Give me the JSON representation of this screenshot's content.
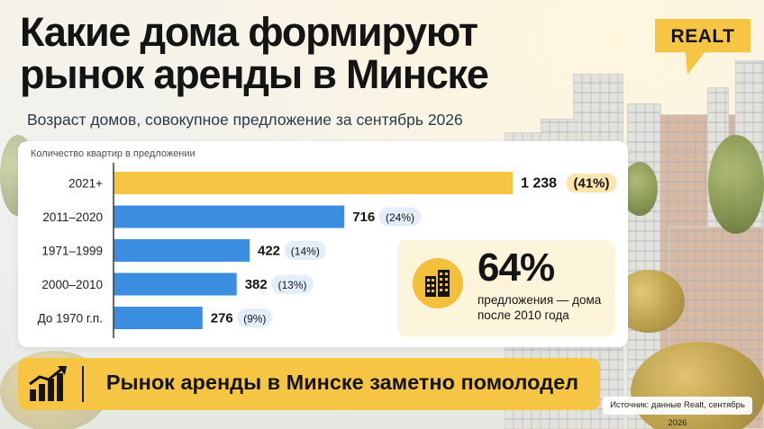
{
  "header": {
    "title_line1": "Какие дома формируют",
    "title_line2": "рынок аренды в Минске",
    "subtitle": "Возраст домов, совокупное предложение за сентябрь 2026"
  },
  "logo": {
    "text": "REALT"
  },
  "chart": {
    "caption": "Количество квартир в предложении"
  },
  "chart_data": {
    "type": "bar",
    "orientation": "horizontal",
    "categories": [
      "2021+",
      "2011–2020",
      "1971–1999",
      "2000–2010",
      "До 1970 г.п."
    ],
    "values": [
      1238,
      716,
      422,
      382,
      276
    ],
    "value_labels": [
      "1 238",
      "716",
      "422",
      "382",
      "276"
    ],
    "share_labels": [
      "(41%)",
      "(24%)",
      "(14%)",
      "(13%)",
      "(9%)"
    ],
    "highlight_index": 0,
    "xlim": [
      0,
      1238
    ],
    "grid": false,
    "colors": {
      "highlight": "#f6c544",
      "default": "#3b8de0"
    }
  },
  "stat": {
    "icon": "buildings-icon",
    "value": "64%",
    "text": "предложения — дома после 2010 года"
  },
  "banner": {
    "icon": "growth-chart-icon",
    "text": "Рынок аренды в Минске заметно помолодел"
  },
  "source": "Источник: данные Realt, сентябрь 2026",
  "colors": {
    "accent": "#f6c544",
    "bar": "#3b8de0",
    "pill_blue": "#e4eefb"
  }
}
